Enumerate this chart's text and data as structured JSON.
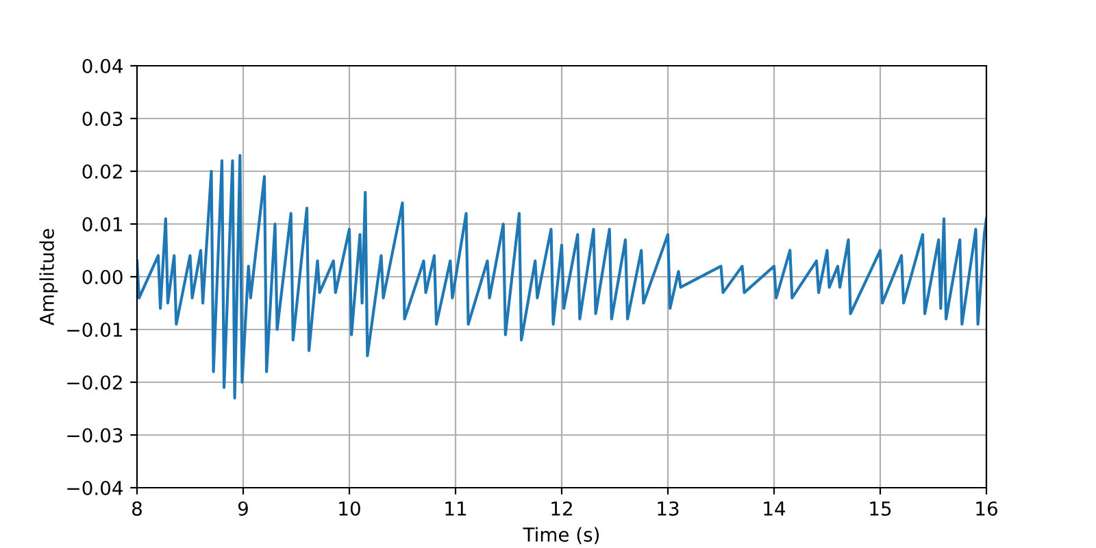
{
  "chart_data": {
    "type": "line",
    "xlabel": "Time (s)",
    "ylabel": "Amplitude",
    "xlim": [
      8,
      16
    ],
    "xticks": [
      8,
      9,
      10,
      11,
      12,
      13,
      14,
      15,
      16
    ],
    "ylim": [
      -0.04,
      0.04
    ],
    "yticks": [
      {
        "value": -0.04,
        "label": "−0.04"
      },
      {
        "value": -0.03,
        "label": "−0.03"
      },
      {
        "value": -0.02,
        "label": "−0.02"
      },
      {
        "value": -0.01,
        "label": "−0.01"
      },
      {
        "value": 0,
        "label": "0.00"
      },
      {
        "value": 0.01,
        "label": "0.01"
      },
      {
        "value": 0.02,
        "label": "0.02"
      },
      {
        "value": 0.03,
        "label": "0.03"
      },
      {
        "value": 0.04,
        "label": "0.04"
      }
    ],
    "grid": true,
    "legend": false,
    "line_style": "solid",
    "series": [
      {
        "color": "#1f77b4",
        "x": [
          8.0,
          8.02,
          8.2,
          8.22,
          8.27,
          8.29,
          8.35,
          8.37,
          8.5,
          8.52,
          8.6,
          8.62,
          8.7,
          8.72,
          8.8,
          8.82,
          8.9,
          8.92,
          8.97,
          8.99,
          9.05,
          9.07,
          9.2,
          9.22,
          9.3,
          9.32,
          9.45,
          9.47,
          9.6,
          9.62,
          9.7,
          9.72,
          9.85,
          9.87,
          10.0,
          10.02,
          10.1,
          10.12,
          10.15,
          10.17,
          10.3,
          10.32,
          10.5,
          10.52,
          10.7,
          10.72,
          10.8,
          10.82,
          10.95,
          10.97,
          11.1,
          11.12,
          11.3,
          11.32,
          11.45,
          11.47,
          11.6,
          11.62,
          11.75,
          11.77,
          11.9,
          11.92,
          12.0,
          12.02,
          12.15,
          12.17,
          12.3,
          12.32,
          12.45,
          12.47,
          12.6,
          12.62,
          12.75,
          12.77,
          13.0,
          13.02,
          13.1,
          13.12,
          13.5,
          13.52,
          13.7,
          13.72,
          14.0,
          14.02,
          14.15,
          14.17,
          14.4,
          14.42,
          14.5,
          14.52,
          14.6,
          14.62,
          14.7,
          14.72,
          15.0,
          15.02,
          15.2,
          15.22,
          15.4,
          15.42,
          15.55,
          15.57,
          15.6,
          15.62,
          15.75,
          15.77,
          15.9,
          15.92,
          15.98,
          16.0
        ],
        "values": [
          0.003,
          -0.004,
          0.004,
          -0.006,
          0.011,
          -0.005,
          0.004,
          -0.009,
          0.004,
          -0.004,
          0.005,
          -0.005,
          0.02,
          -0.018,
          0.022,
          -0.021,
          0.022,
          -0.023,
          0.023,
          -0.02,
          0.002,
          -0.004,
          0.019,
          -0.018,
          0.01,
          -0.01,
          0.012,
          -0.012,
          0.013,
          -0.014,
          0.003,
          -0.003,
          0.003,
          -0.003,
          0.009,
          -0.011,
          0.008,
          -0.005,
          0.016,
          -0.015,
          0.004,
          -0.004,
          0.014,
          -0.008,
          0.003,
          -0.003,
          0.004,
          -0.009,
          0.003,
          -0.004,
          0.012,
          -0.009,
          0.003,
          -0.004,
          0.01,
          -0.011,
          0.012,
          -0.012,
          0.003,
          -0.004,
          0.009,
          -0.009,
          0.006,
          -0.006,
          0.008,
          -0.008,
          0.009,
          -0.007,
          0.009,
          -0.008,
          0.007,
          -0.008,
          0.005,
          -0.005,
          0.008,
          -0.006,
          0.001,
          -0.002,
          0.002,
          -0.003,
          0.002,
          -0.003,
          0.002,
          -0.004,
          0.005,
          -0.004,
          0.003,
          -0.003,
          0.005,
          -0.002,
          0.002,
          -0.002,
          0.007,
          -0.007,
          0.005,
          -0.005,
          0.004,
          -0.005,
          0.008,
          -0.007,
          0.007,
          -0.006,
          0.011,
          -0.008,
          0.007,
          -0.009,
          0.009,
          -0.009,
          0.008,
          0.011
        ]
      }
    ]
  }
}
